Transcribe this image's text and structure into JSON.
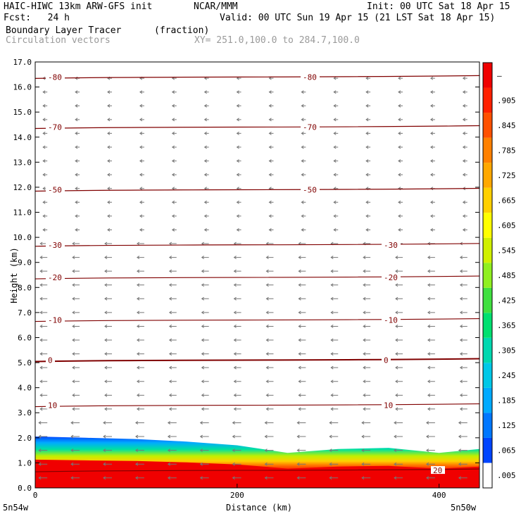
{
  "header": {
    "model": "HAIC-HIWC 13km ARW-GFS init",
    "org": "NCAR/MMM",
    "init": "Init: 00 UTC Sat 18 Apr 15",
    "fcst": "Fcst:   24 h",
    "valid": "Valid: 00 UTC Sun 19 Apr 15 (21 LST Sat 18 Apr 15)",
    "field": "Boundary Layer Tracer",
    "units": "(fraction)",
    "vectors": "Circulation vectors",
    "xsec": "XY= 251.0,100.0 to 284.7,100.0"
  },
  "chart_data": {
    "type": "heatmap",
    "xlabel": "Distance (km)",
    "ylabel": "Height (km)",
    "xlim": [
      0,
      440
    ],
    "ylim": [
      0,
      17
    ],
    "x_ticks": [
      0,
      200,
      400
    ],
    "y_ticks": [
      "0.0",
      "1.0",
      "2.0",
      "3.0",
      "4.0",
      "5.0",
      "6.0",
      "7.0",
      "8.0",
      "9.0",
      "10.0",
      "11.0",
      "12.0",
      "13.0",
      "14.0",
      "15.0",
      "16.0",
      "17.0"
    ],
    "end_labels": {
      "left": "5n54w",
      "right": "5n50w"
    },
    "colorbar": {
      "labels": [
        ".005",
        ".065",
        ".125",
        ".185",
        ".245",
        ".305",
        ".365",
        ".425",
        ".485",
        ".545",
        ".605",
        ".665",
        ".725",
        ".785",
        ".845",
        ".905",
        "–"
      ],
      "colors": [
        "#ffffff",
        "#0044ff",
        "#0077ff",
        "#00aaff",
        "#00c8e8",
        "#00d8b0",
        "#00e070",
        "#40e040",
        "#90f020",
        "#d0f000",
        "#ffff00",
        "#ffd000",
        "#ffa800",
        "#ff8000",
        "#ff5000",
        "#ff2000",
        "#f00000"
      ]
    },
    "temperature_contours": {
      "interval": 10,
      "levels": [
        {
          "value": 10,
          "label": "10",
          "height": 3.3
        },
        {
          "value": 0,
          "label": "0",
          "height": 5.1
        },
        {
          "value": -10,
          "label": "-10",
          "height": 6.7
        },
        {
          "value": -20,
          "label": "-20",
          "height": 8.4
        },
        {
          "value": -30,
          "label": "-30",
          "height": 9.7
        },
        {
          "value": -50,
          "label": "-50",
          "height": 11.9
        },
        {
          "value": -70,
          "label": "-70",
          "height": 14.4
        },
        {
          "value": -80,
          "label": "-80",
          "height": 16.4
        },
        {
          "value": 20,
          "label": "20",
          "height": 0.7
        }
      ]
    },
    "tracer_top_height": [
      {
        "x": 0,
        "h": 2.05
      },
      {
        "x": 50,
        "h": 2.0
      },
      {
        "x": 100,
        "h": 1.95
      },
      {
        "x": 150,
        "h": 1.85
      },
      {
        "x": 200,
        "h": 1.7
      },
      {
        "x": 250,
        "h": 1.4
      },
      {
        "x": 300,
        "h": 1.55
      },
      {
        "x": 350,
        "h": 1.6
      },
      {
        "x": 400,
        "h": 1.4
      },
      {
        "x": 440,
        "h": 1.55
      }
    ],
    "wind_direction": "easterly (right-to-left arrows)"
  }
}
